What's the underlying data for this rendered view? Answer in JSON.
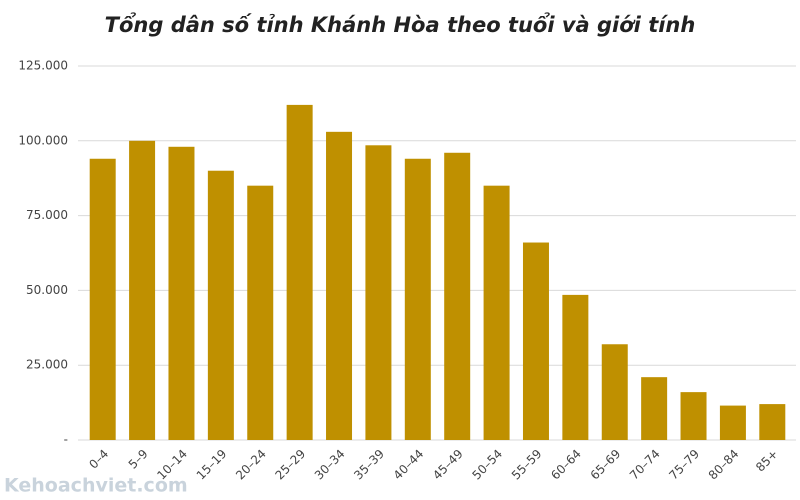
{
  "chart_data": {
    "type": "bar",
    "title": "Tổng dân số tỉnh Khánh Hòa theo tuổi và giới tính",
    "categories": [
      "0–4",
      "5–9",
      "10–14",
      "15–19",
      "20–24",
      "25–29",
      "30–34",
      "35–39",
      "40–44",
      "45–49",
      "50–54",
      "55–59",
      "60–64",
      "65–69",
      "70–74",
      "75–79",
      "80–84",
      "85+"
    ],
    "values": [
      94000,
      100000,
      98000,
      90000,
      85000,
      112000,
      103000,
      98500,
      94000,
      96000,
      85000,
      66000,
      48500,
      32000,
      21000,
      16000,
      11500,
      12000
    ],
    "color": "#bf9000",
    "ylim": [
      0,
      125000
    ],
    "yticks": [
      {
        "value": 0,
        "label": "-"
      },
      {
        "value": 25000,
        "label": "25.000"
      },
      {
        "value": 50000,
        "label": "50.000"
      },
      {
        "value": 75000,
        "label": "75.000"
      },
      {
        "value": 100000,
        "label": "100.000"
      },
      {
        "value": 125000,
        "label": "125.000"
      }
    ],
    "grid": true,
    "watermark": "Kehoachviet.com"
  }
}
